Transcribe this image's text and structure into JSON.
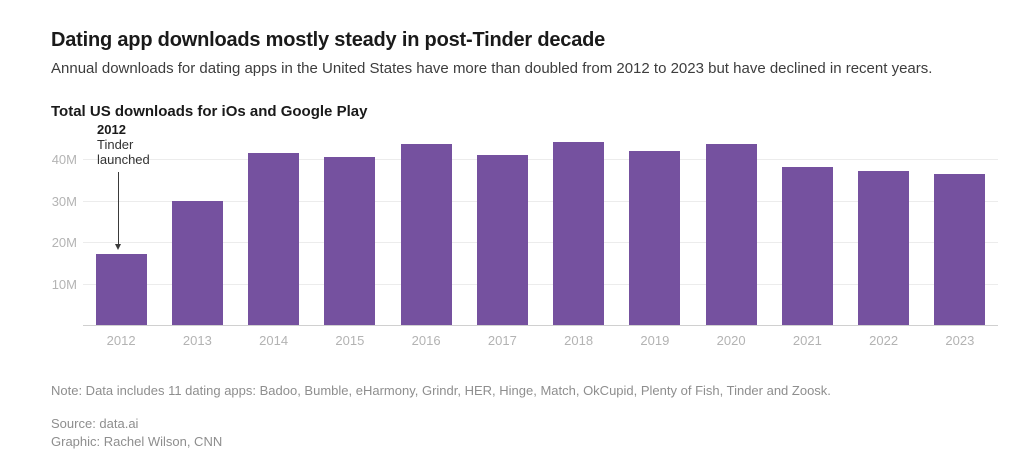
{
  "header": {
    "title": "Dating app downloads mostly steady in post-Tinder decade",
    "subtitle": "Annual downloads for dating apps in the United States have more than doubled from 2012 to 2023 but have declined in recent years."
  },
  "chart_data": {
    "type": "bar",
    "title": "Total US downloads for iOs and Google Play",
    "categories": [
      "2012",
      "2013",
      "2014",
      "2015",
      "2016",
      "2017",
      "2018",
      "2019",
      "2020",
      "2021",
      "2022",
      "2023"
    ],
    "values": [
      17,
      30,
      41.5,
      40.5,
      43.5,
      41,
      44,
      42,
      43.5,
      38,
      37,
      36.5
    ],
    "unit": "millions of downloads",
    "yticks": [
      "10M",
      "20M",
      "30M",
      "40M"
    ],
    "ytick_values": [
      10,
      20,
      30,
      40
    ],
    "ylim": [
      0,
      45
    ],
    "grid": "horizontal",
    "legend": "none",
    "bar_color": "#75519f",
    "annotation": {
      "year": "2012",
      "text": "Tinder launched",
      "target_category": "2012"
    }
  },
  "footer": {
    "note": "Note: Data includes 11 dating apps: Badoo, Bumble, eHarmony, Grindr, HER, Hinge, Match, OkCupid, Plenty of Fish, Tinder and Zoosk.",
    "source": "Source: data.ai",
    "credit": "Graphic: Rachel Wilson, CNN"
  }
}
